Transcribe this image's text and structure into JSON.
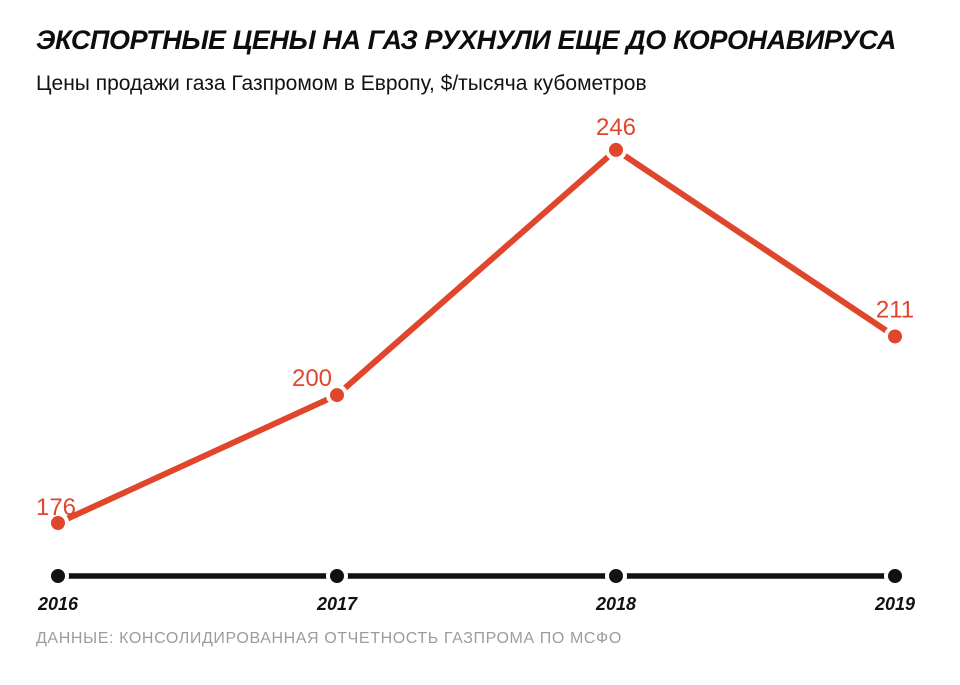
{
  "header": {
    "title": "ЭКСПОРТНЫЕ ЦЕНЫ НА ГАЗ РУХНУЛИ ЕЩЕ ДО КОРОНАВИРУСА",
    "subtitle": "Цены продажи газа Газпромом в Европу, $/тысяча кубометров"
  },
  "chart_data": {
    "type": "line",
    "title": "ЭКСПОРТНЫЕ ЦЕНЫ НА ГАЗ РУХНУЛИ ЕЩЕ ДО КОРОНАВИРУСА",
    "subtitle": "Цены продажи газа Газпромом в Европу, $/тысяча кубометров",
    "categories": [
      "2016",
      "2017",
      "2018",
      "2019"
    ],
    "values": [
      176,
      200,
      246,
      211
    ],
    "data_labels": [
      "176",
      "200",
      "246",
      "211"
    ],
    "ylabel": "$/тысяча кубометров",
    "xlabel": "",
    "grid": false,
    "legend": false,
    "axis_position": "bottom",
    "colors": {
      "line": "#e0462c",
      "marker": "#e0462c",
      "value_label": "#e0462c",
      "axis": "#111111",
      "tick_label": "#111111",
      "background": "#ffffff",
      "source_text": "#9c9c9c"
    }
  },
  "footer": {
    "source": "ДАННЫЕ: КОНСОЛИДИРОВАННАЯ ОТЧЕТНОСТЬ ГАЗПРОМА ПО МСФО"
  }
}
